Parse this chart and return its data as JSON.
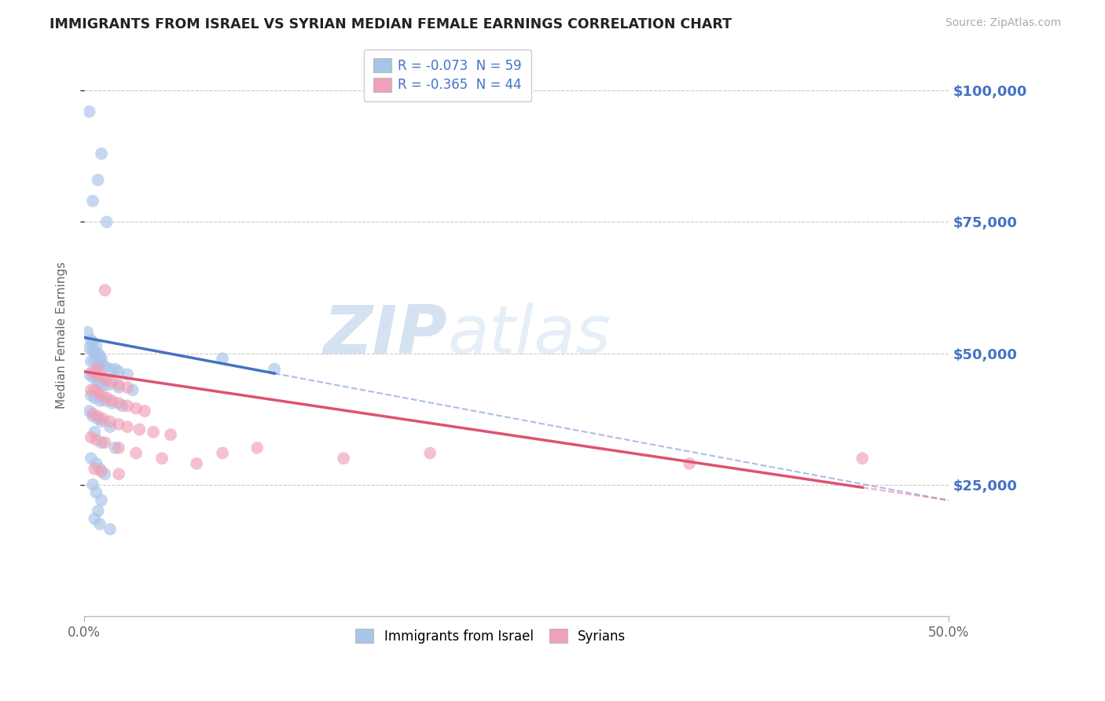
{
  "title": "IMMIGRANTS FROM ISRAEL VS SYRIAN MEDIAN FEMALE EARNINGS CORRELATION CHART",
  "source": "Source: ZipAtlas.com",
  "ylabel": "Median Female Earnings",
  "y_ticks": [
    25000,
    50000,
    75000,
    100000
  ],
  "y_tick_labels": [
    "$25,000",
    "$50,000",
    "$75,000",
    "$100,000"
  ],
  "israel_R": -0.073,
  "israel_N": 59,
  "syrian_R": -0.365,
  "syrian_N": 44,
  "scatter_israel": [
    [
      0.3,
      96000
    ],
    [
      1.0,
      88000
    ],
    [
      0.8,
      83000
    ],
    [
      0.5,
      79000
    ],
    [
      1.3,
      75000
    ],
    [
      0.2,
      54000
    ],
    [
      0.4,
      52500
    ],
    [
      0.5,
      52000
    ],
    [
      0.7,
      51500
    ],
    [
      0.3,
      51000
    ],
    [
      0.5,
      50500
    ],
    [
      0.6,
      50000
    ],
    [
      0.8,
      50000
    ],
    [
      0.9,
      49500
    ],
    [
      1.0,
      49000
    ],
    [
      0.4,
      48500
    ],
    [
      0.6,
      48500
    ],
    [
      0.8,
      48000
    ],
    [
      1.0,
      48000
    ],
    [
      1.2,
      47500
    ],
    [
      1.5,
      47000
    ],
    [
      1.8,
      47000
    ],
    [
      2.0,
      46500
    ],
    [
      2.5,
      46000
    ],
    [
      0.3,
      46000
    ],
    [
      0.5,
      45500
    ],
    [
      0.7,
      45000
    ],
    [
      0.9,
      44500
    ],
    [
      1.1,
      44000
    ],
    [
      1.4,
      44000
    ],
    [
      2.0,
      43500
    ],
    [
      2.8,
      43000
    ],
    [
      0.4,
      42000
    ],
    [
      0.6,
      41500
    ],
    [
      0.9,
      41000
    ],
    [
      1.2,
      41000
    ],
    [
      1.6,
      40500
    ],
    [
      2.2,
      40000
    ],
    [
      0.3,
      39000
    ],
    [
      0.5,
      38000
    ],
    [
      0.8,
      37500
    ],
    [
      1.0,
      37000
    ],
    [
      1.5,
      36000
    ],
    [
      0.6,
      35000
    ],
    [
      1.0,
      33000
    ],
    [
      1.8,
      32000
    ],
    [
      0.4,
      30000
    ],
    [
      0.7,
      29000
    ],
    [
      0.9,
      28000
    ],
    [
      1.2,
      27000
    ],
    [
      0.5,
      25000
    ],
    [
      0.7,
      23500
    ],
    [
      1.0,
      22000
    ],
    [
      0.8,
      20000
    ],
    [
      0.6,
      18500
    ],
    [
      0.9,
      17500
    ],
    [
      1.5,
      16500
    ],
    [
      8.0,
      49000
    ],
    [
      11.0,
      47000
    ]
  ],
  "scatter_syrian": [
    [
      1.2,
      62000
    ],
    [
      0.8,
      47000
    ],
    [
      0.5,
      46500
    ],
    [
      0.7,
      46000
    ],
    [
      1.0,
      45500
    ],
    [
      1.3,
      45000
    ],
    [
      1.6,
      44500
    ],
    [
      2.0,
      44000
    ],
    [
      2.5,
      43500
    ],
    [
      0.4,
      43000
    ],
    [
      0.6,
      43000
    ],
    [
      0.8,
      42500
    ],
    [
      1.0,
      42000
    ],
    [
      1.3,
      41500
    ],
    [
      1.6,
      41000
    ],
    [
      2.0,
      40500
    ],
    [
      2.5,
      40000
    ],
    [
      3.0,
      39500
    ],
    [
      3.5,
      39000
    ],
    [
      0.5,
      38500
    ],
    [
      0.8,
      38000
    ],
    [
      1.1,
      37500
    ],
    [
      1.5,
      37000
    ],
    [
      2.0,
      36500
    ],
    [
      2.5,
      36000
    ],
    [
      3.2,
      35500
    ],
    [
      4.0,
      35000
    ],
    [
      5.0,
      34500
    ],
    [
      0.4,
      34000
    ],
    [
      0.7,
      33500
    ],
    [
      1.2,
      33000
    ],
    [
      2.0,
      32000
    ],
    [
      3.0,
      31000
    ],
    [
      4.5,
      30000
    ],
    [
      6.5,
      29000
    ],
    [
      0.6,
      28000
    ],
    [
      1.0,
      27500
    ],
    [
      2.0,
      27000
    ],
    [
      20.0,
      31000
    ],
    [
      35.0,
      29000
    ],
    [
      45.0,
      30000
    ],
    [
      10.0,
      32000
    ],
    [
      15.0,
      30000
    ],
    [
      8.0,
      31000
    ]
  ],
  "israel_line_color": "#4472c4",
  "syrian_line_color": "#e05070",
  "israel_scatter_color": "#a8c4e8",
  "syrian_scatter_color": "#f0a0b8",
  "watermark_zip": "ZIP",
  "watermark_atlas": "atlas",
  "background_color": "#ffffff",
  "grid_color": "#cccccc",
  "title_color": "#222222",
  "right_tick_color": "#4472c4",
  "legend_text_color": "#4472c4",
  "xmin": 0.0,
  "xmax": 50.0,
  "ymin": 0,
  "ymax": 107000,
  "israel_line_x0": 0.0,
  "israel_line_y0": 53000,
  "israel_line_x1": 50.0,
  "israel_line_y1": 22000,
  "israel_solid_xmax": 11.0,
  "syrian_line_x0": 0.0,
  "syrian_line_y0": 46500,
  "syrian_line_x1": 50.0,
  "syrian_line_y1": 22000,
  "syrian_solid_xmax": 45.0
}
